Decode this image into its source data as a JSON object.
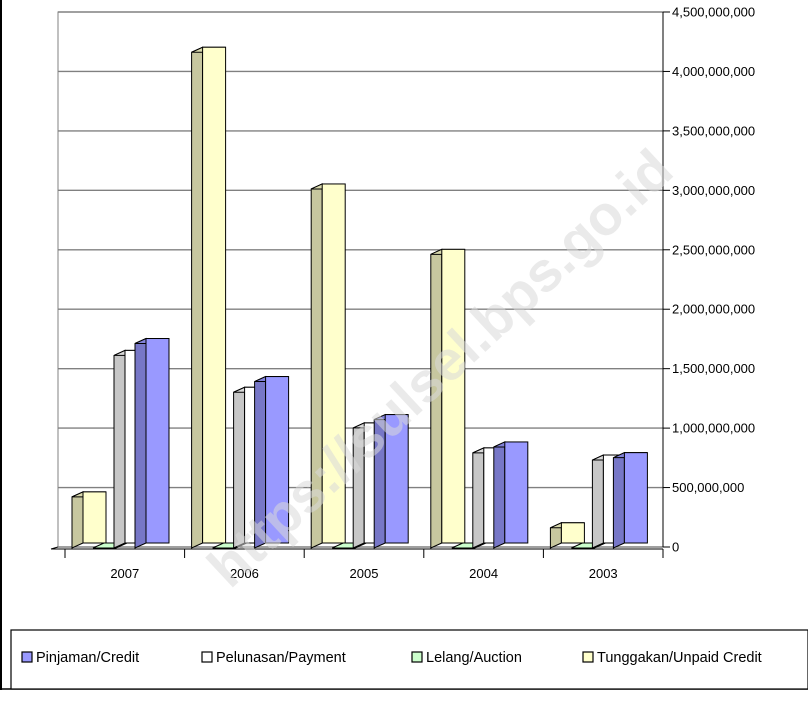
{
  "chart_data": {
    "type": "bar",
    "categories": [
      "2007",
      "2006",
      "2005",
      "2004",
      "2003"
    ],
    "series": [
      {
        "name": "Tunggakan/Unpaid Credit",
        "values": [
          430000000,
          4170000000,
          3020000000,
          2470000000,
          170000000
        ],
        "color": "#ffffcc"
      },
      {
        "name": "Lelang/Auction",
        "values": [
          0,
          0,
          0,
          0,
          0
        ],
        "color": "#ccffcc"
      },
      {
        "name": "Pelunasan/Payment",
        "values": [
          1620000000,
          1310000000,
          1010000000,
          800000000,
          740000000
        ],
        "color": "#ffffff"
      },
      {
        "name": "Pinjaman/Credit",
        "values": [
          1720000000,
          1400000000,
          1080000000,
          850000000,
          760000000
        ],
        "color": "#9999ff"
      }
    ],
    "legend_order": [
      "Pinjaman/Credit",
      "Pelunasan/Payment",
      "Lelang/Auction",
      "Tunggakan/Unpaid Credit"
    ],
    "y_ticks": [
      0,
      500000000,
      1000000000,
      1500000000,
      2000000000,
      2500000000,
      3000000000,
      3500000000,
      4000000000,
      4500000000
    ],
    "y_tick_labels": [
      "0",
      "500,000,000",
      "1,000,000,000",
      "1,500,000,000",
      "2,000,000,000",
      "2,500,000,000",
      "3,000,000,000",
      "3,500,000,000",
      "4,000,000,000",
      "4,500,000,000"
    ],
    "ylim": [
      0,
      4500000000
    ],
    "y_axis_side": "right",
    "grid": true,
    "legend_position": "bottom",
    "title": "",
    "xlabel": "",
    "ylabel": ""
  },
  "watermark": "https://sulsel.bps.go.id"
}
